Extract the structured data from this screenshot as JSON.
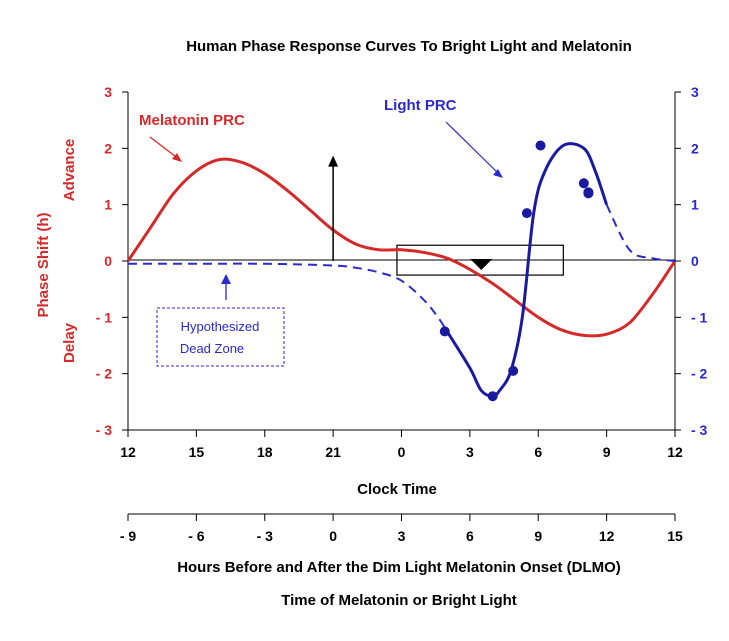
{
  "chart_data": {
    "type": "line",
    "title": "Human Phase Response Curves To Bright Light and Melatonin",
    "xlabel": "Clock Time",
    "x2label": "Hours Before and After the Dim Light Melatonin Onset (DLMO)",
    "x3label": "Time of Melatonin or Bright Light",
    "ylabel": "Phase Shift (h)",
    "y_advance_label": "Advance",
    "y_delay_label": "Delay",
    "xlim": [
      12,
      36
    ],
    "ylim": [
      -3,
      3
    ],
    "x_ticks": [
      12,
      15,
      18,
      21,
      24,
      27,
      30,
      33,
      36
    ],
    "x_tick_labels": [
      "12",
      "15",
      "18",
      "21",
      "0",
      "3",
      "6",
      "9",
      "12"
    ],
    "x2_ticks": [
      -9,
      -6,
      -3,
      0,
      3,
      6,
      9,
      12,
      15
    ],
    "x2_tick_labels": [
      "- 9",
      "- 6",
      "- 3",
      "0",
      "3",
      "6",
      "9",
      "12",
      "15"
    ],
    "y_ticks": [
      3,
      2,
      1,
      0,
      -1,
      -2,
      -3
    ],
    "y_left_tick_labels": [
      "3",
      "2",
      "1",
      "0",
      "- 1",
      "- 2",
      "- 3"
    ],
    "y_right_tick_labels": [
      "3",
      "2",
      "1",
      "0",
      "- 1",
      "- 2",
      "- 3"
    ],
    "colors": {
      "melatonin": "#d42a2a",
      "light": "#1a1a9e",
      "light_label": "#2a2acc"
    },
    "series": [
      {
        "name": "Melatonin PRC",
        "style": "solid",
        "x": [
          12,
          13,
          14,
          15,
          16,
          17,
          18,
          19,
          20,
          21,
          22,
          23,
          24,
          25,
          26,
          27,
          28,
          29,
          30,
          31,
          32,
          33,
          34,
          35,
          36
        ],
        "y": [
          0,
          0.6,
          1.2,
          1.6,
          1.8,
          1.75,
          1.55,
          1.25,
          0.9,
          0.55,
          0.3,
          0.2,
          0.2,
          0.15,
          0.05,
          -0.15,
          -0.4,
          -0.7,
          -1.0,
          -1.22,
          -1.32,
          -1.3,
          -1.1,
          -0.6,
          0
        ]
      },
      {
        "name": "Light PRC",
        "style": "mixed",
        "x": [
          12,
          15,
          18,
          21,
          22,
          23,
          24,
          25,
          25.6,
          26,
          27,
          27.5,
          28,
          28.3,
          28.8,
          29.3,
          29.8,
          30.3,
          31.1,
          32,
          32.5,
          33,
          34,
          35,
          36
        ],
        "y": [
          -0.05,
          -0.05,
          -0.05,
          -0.08,
          -0.12,
          -0.2,
          -0.35,
          -0.7,
          -1.0,
          -1.25,
          -1.9,
          -2.3,
          -2.4,
          -2.3,
          -1.95,
          -1.0,
          0.85,
          1.6,
          2.05,
          2.0,
          1.6,
          1.0,
          0.2,
          0.05,
          0
        ],
        "dashed_ranges": [
          [
            12,
            26
          ],
          [
            33,
            36
          ]
        ]
      }
    ],
    "light_points": {
      "x": [
        25.9,
        28.0,
        28.9,
        29.5,
        30.1,
        32.0,
        32.2,
        32.2
      ],
      "y": [
        -1.25,
        -2.4,
        -1.95,
        0.85,
        2.05,
        1.38,
        1.2,
        1.22
      ]
    },
    "annotations": {
      "melatonin_label": "Melatonin PRC",
      "light_label": "Light PRC",
      "dead_zone_label_line1": "Hypothesized",
      "dead_zone_label_line2": "Dead Zone"
    },
    "dlmo_arrow": {
      "x": 21,
      "y_from": 0,
      "y_to": 1.8
    },
    "sleep_box": {
      "x_start": 23.8,
      "x_end": 31.1,
      "y_low": -0.25,
      "y_high": 0.28
    },
    "core_temp_minimum_marker": {
      "x": 27.5,
      "y": 0
    }
  }
}
